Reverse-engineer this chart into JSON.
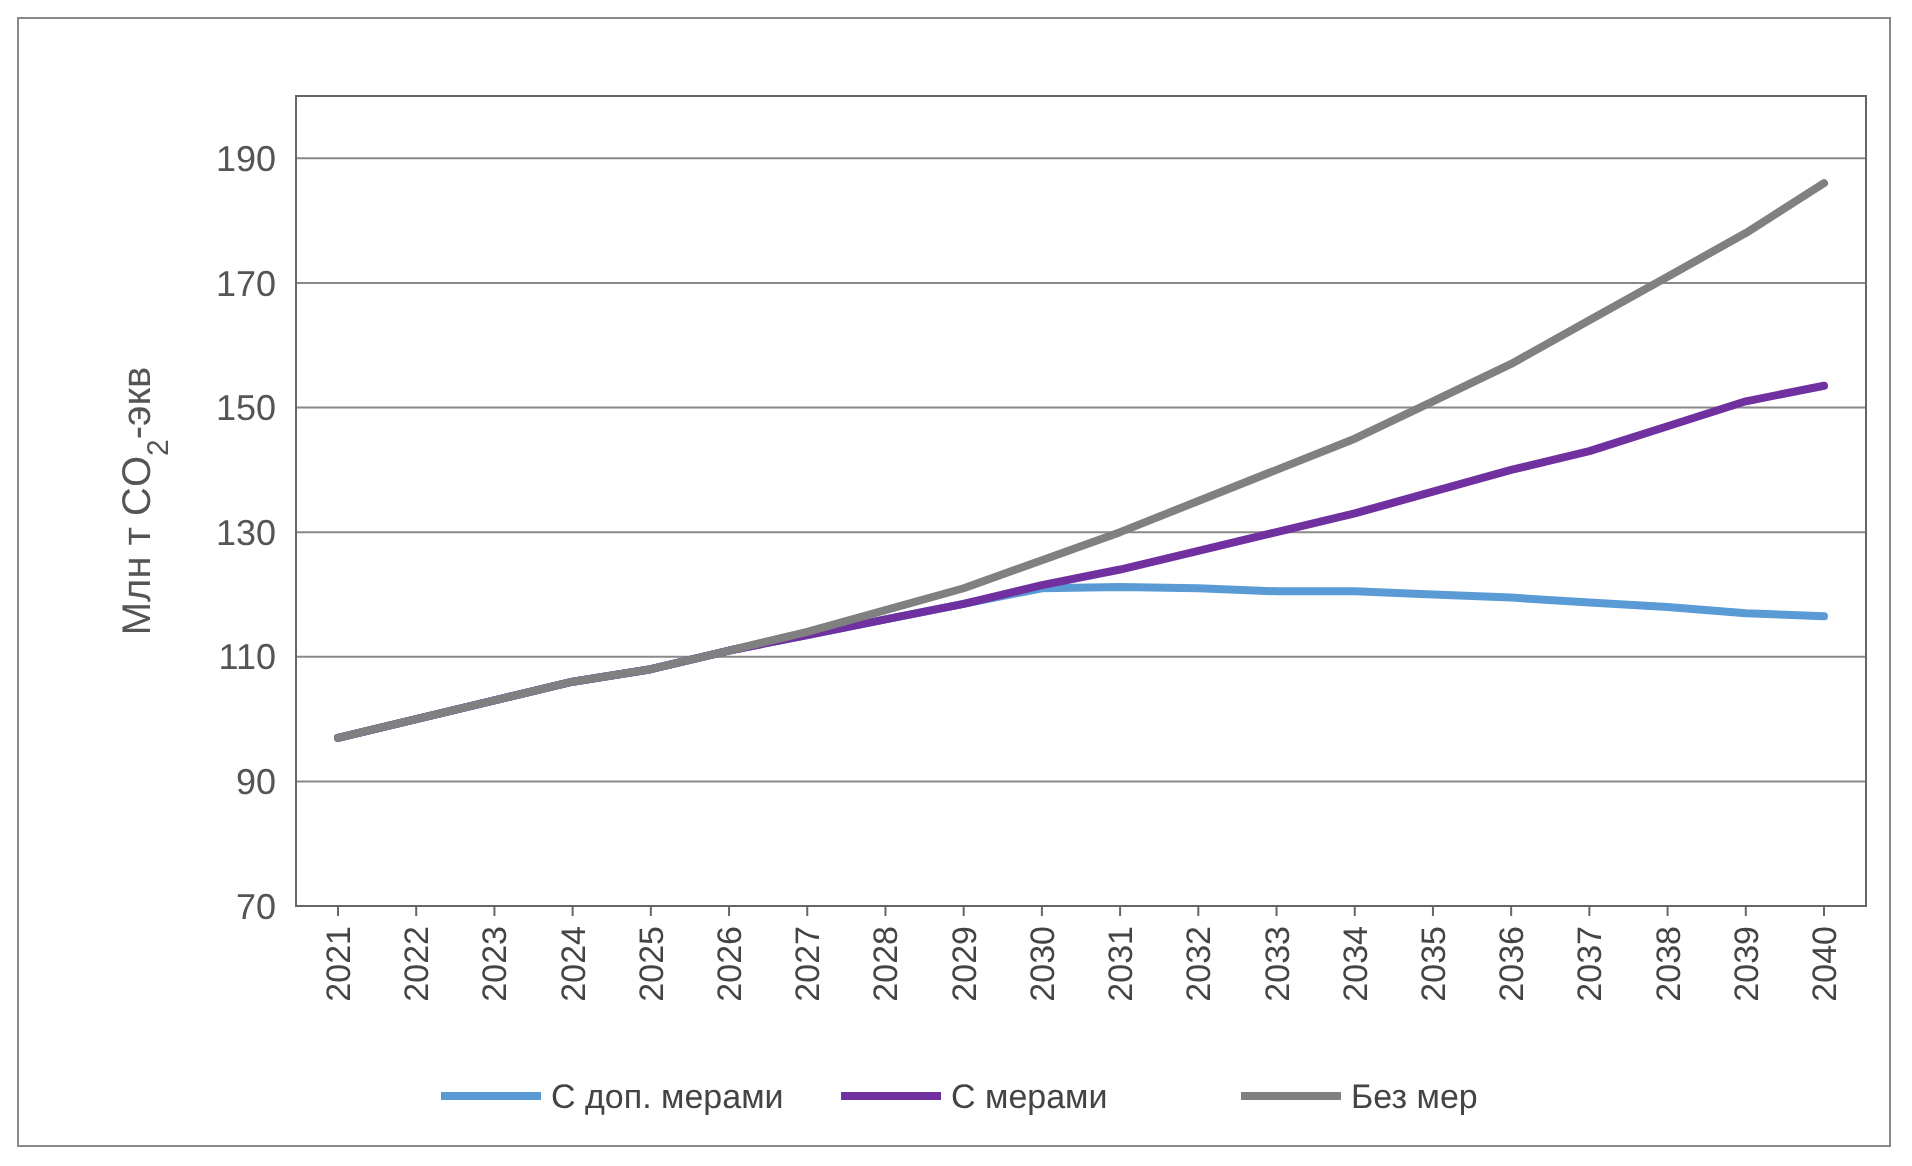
{
  "chart_data": {
    "type": "line",
    "ylabel": "Млн т CO$_{2}$-экв",
    "categories": [
      "2021",
      "2022",
      "2023",
      "2024",
      "2025",
      "2026",
      "2027",
      "2028",
      "2029",
      "2030",
      "2031",
      "2032",
      "2033",
      "2034",
      "2035",
      "2036",
      "2037",
      "2038",
      "2039",
      "2040"
    ],
    "series": [
      {
        "name": "С доп. мерами",
        "color": "#5b9bd5",
        "values": [
          97,
          100,
          103,
          106,
          108,
          111,
          113.5,
          116,
          118.5,
          121,
          121.2,
          121,
          120.5,
          120.5,
          120,
          119.5,
          118.7,
          118,
          117,
          116.5
        ]
      },
      {
        "name": "С мерами",
        "color": "#7030a0",
        "values": [
          97,
          100,
          103,
          106,
          108,
          111,
          113.5,
          116,
          118.5,
          121.5,
          124,
          127,
          130,
          133,
          136.5,
          140,
          143,
          147,
          151,
          153.5
        ]
      },
      {
        "name": "Без мер",
        "color": "#808080",
        "values": [
          97,
          100,
          103,
          106,
          108,
          111,
          114,
          117.5,
          121,
          125.5,
          130,
          135,
          140,
          145,
          151,
          157,
          164,
          171,
          178,
          186
        ]
      }
    ],
    "ylim": [
      70,
      200
    ],
    "yticks": [
      70,
      90,
      110,
      130,
      150,
      170,
      190
    ],
    "grid": "y",
    "legend": "bottom",
    "line_style": "solid",
    "marker": "none"
  }
}
